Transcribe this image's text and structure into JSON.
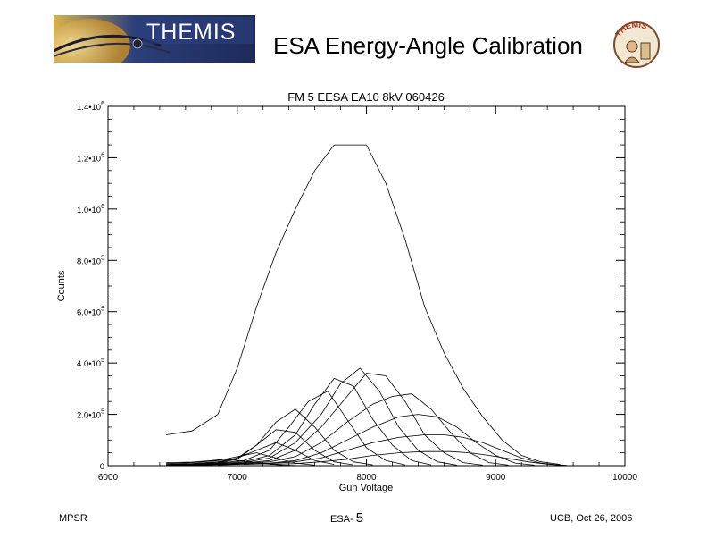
{
  "header": {
    "logo_text": "THEMIS",
    "title": "ESA Energy-Angle Calibration",
    "mascot_text": "THEMIS"
  },
  "footer": {
    "left": "MPSR",
    "center_prefix": "ESA-",
    "center_number": "5",
    "right": "UCB, Oct 26, 2006"
  },
  "chart_data": {
    "type": "line",
    "title": "FM 5 EESA EA10 8kV 060426",
    "xlabel": "Gun Voltage",
    "ylabel": "Counts",
    "xlim": [
      6000,
      10000
    ],
    "ylim": [
      0,
      1400000
    ],
    "xticks": [
      6000,
      7000,
      8000,
      9000,
      10000
    ],
    "xtick_labels": [
      "6000",
      "7000",
      "8000",
      "9000",
      "10000"
    ],
    "yticks": [
      0,
      200000,
      400000,
      600000,
      800000,
      1000000,
      1200000,
      1400000
    ],
    "ytick_labels": [
      {
        "m": "0",
        "e": ""
      },
      {
        "m": "2.0•10",
        "e": "5"
      },
      {
        "m": "4.0•10",
        "e": "5"
      },
      {
        "m": "6.0•10",
        "e": "5"
      },
      {
        "m": "8.0•10",
        "e": "5"
      },
      {
        "m": "1.0•10",
        "e": "6"
      },
      {
        "m": "1.2•10",
        "e": "6"
      },
      {
        "m": "1.4•10",
        "e": "6"
      }
    ],
    "grid": false,
    "series": [
      {
        "x": [
          6450,
          6650,
          6850,
          7000,
          7150,
          7300,
          7450,
          7600,
          7750,
          7850,
          8000,
          8150,
          8300,
          8450,
          8600,
          8750,
          8900,
          9050,
          9200,
          9350,
          9500
        ],
        "values": [
          120000,
          135000,
          200000,
          380000,
          620000,
          830000,
          1000000,
          1150000,
          1250000,
          1250000,
          1250000,
          1100000,
          880000,
          620000,
          440000,
          300000,
          190000,
          100000,
          40000,
          15000,
          5000
        ]
      },
      {
        "x": [
          6450,
          6650,
          6800,
          6900,
          7050,
          7200,
          7350,
          7500
        ],
        "values": [
          12000,
          14000,
          20000,
          25000,
          18000,
          8000,
          2000,
          0
        ]
      },
      {
        "x": [
          6450,
          6650,
          6850,
          7000,
          7150,
          7300,
          7450,
          7600
        ],
        "values": [
          8000,
          12000,
          20000,
          35000,
          50000,
          30000,
          10000,
          2000
        ]
      },
      {
        "x": [
          6450,
          6650,
          6850,
          7000,
          7150,
          7300,
          7450,
          7600,
          7750
        ],
        "values": [
          5000,
          8000,
          15000,
          30000,
          60000,
          90000,
          60000,
          20000,
          5000
        ]
      },
      {
        "x": [
          6450,
          6650,
          6850,
          7000,
          7150,
          7300,
          7450,
          7600,
          7750,
          7900
        ],
        "values": [
          4000,
          7000,
          12000,
          30000,
          80000,
          140000,
          130000,
          60000,
          15000,
          3000
        ]
      },
      {
        "x": [
          6450,
          6650,
          6850,
          7000,
          7150,
          7300,
          7450,
          7600,
          7750,
          7900,
          8050
        ],
        "values": [
          3000,
          6000,
          10000,
          25000,
          80000,
          170000,
          220000,
          150000,
          60000,
          15000,
          3000
        ]
      },
      {
        "x": [
          6450,
          6650,
          6850,
          7050,
          7250,
          7400,
          7550,
          7700,
          7850,
          8000,
          8150,
          8300
        ],
        "values": [
          2000,
          5000,
          10000,
          20000,
          60000,
          150000,
          250000,
          290000,
          180000,
          70000,
          20000,
          3000
        ]
      },
      {
        "x": [
          6450,
          6650,
          6850,
          7050,
          7250,
          7450,
          7600,
          7750,
          7900,
          8050,
          8200,
          8350,
          8500
        ],
        "values": [
          2000,
          4000,
          8000,
          15000,
          40000,
          120000,
          240000,
          340000,
          310000,
          180000,
          80000,
          20000,
          3000
        ]
      },
      {
        "x": [
          6450,
          6650,
          6850,
          7050,
          7250,
          7450,
          7650,
          7800,
          7950,
          8100,
          8250,
          8400,
          8550,
          8700
        ],
        "values": [
          1500,
          3000,
          6000,
          12000,
          30000,
          90000,
          200000,
          320000,
          380000,
          290000,
          150000,
          60000,
          15000,
          2000
        ]
      },
      {
        "x": [
          6450,
          6650,
          6850,
          7050,
          7250,
          7450,
          7650,
          7850,
          8000,
          8150,
          8300,
          8450,
          8600,
          8750,
          8900
        ],
        "values": [
          1000,
          2500,
          5000,
          10000,
          20000,
          60000,
          150000,
          270000,
          360000,
          350000,
          250000,
          120000,
          50000,
          12000,
          2000
        ]
      },
      {
        "x": [
          6650,
          6850,
          7050,
          7250,
          7450,
          7650,
          7850,
          8050,
          8200,
          8350,
          8500,
          8650,
          8800,
          8950,
          9100
        ],
        "values": [
          2000,
          4000,
          8000,
          15000,
          35000,
          90000,
          170000,
          240000,
          270000,
          280000,
          220000,
          130000,
          50000,
          12000,
          2000
        ]
      },
      {
        "x": [
          6850,
          7050,
          7250,
          7450,
          7650,
          7850,
          8050,
          8250,
          8400,
          8550,
          8700,
          8850,
          9000,
          9150,
          9300
        ],
        "values": [
          3000,
          6000,
          10000,
          20000,
          50000,
          100000,
          150000,
          190000,
          200000,
          190000,
          150000,
          90000,
          40000,
          10000,
          2000
        ]
      },
      {
        "x": [
          7050,
          7250,
          7450,
          7650,
          7850,
          8050,
          8250,
          8450,
          8600,
          8750,
          8900,
          9050,
          9200,
          9350,
          9500
        ],
        "values": [
          5000,
          8000,
          15000,
          30000,
          60000,
          90000,
          110000,
          120000,
          120000,
          110000,
          90000,
          60000,
          30000,
          10000,
          2000
        ]
      },
      {
        "x": [
          7250,
          7450,
          7650,
          7850,
          8050,
          8250,
          8450,
          8650,
          8800,
          8950,
          9100,
          9250,
          9400,
          9550
        ],
        "values": [
          5000,
          8000,
          15000,
          25000,
          40000,
          50000,
          55000,
          55000,
          50000,
          40000,
          28000,
          15000,
          6000,
          1000
        ]
      }
    ]
  }
}
